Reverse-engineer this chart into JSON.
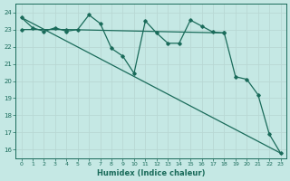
{
  "xlabel": "Humidex (Indice chaleur)",
  "bg_color": "#c5e8e4",
  "grid_major_color": "#b8d8d4",
  "grid_minor_color": "#cde8e4",
  "line_color": "#1a6b5a",
  "xlim": [
    -0.5,
    23.5
  ],
  "ylim": [
    15.5,
    24.5
  ],
  "yticks": [
    16,
    17,
    18,
    19,
    20,
    21,
    22,
    23,
    24
  ],
  "xticks": [
    0,
    1,
    2,
    3,
    4,
    5,
    6,
    7,
    8,
    9,
    10,
    11,
    12,
    13,
    14,
    15,
    16,
    17,
    18,
    19,
    20,
    21,
    22,
    23
  ],
  "line1_x": [
    0,
    1,
    2,
    3,
    4,
    5,
    6,
    7,
    8,
    9,
    10,
    11,
    12,
    13,
    14,
    15,
    16,
    17,
    18,
    19,
    20,
    21,
    22,
    23
  ],
  "line1_y": [
    23.7,
    23.1,
    22.9,
    23.1,
    22.9,
    23.0,
    23.85,
    23.35,
    21.9,
    21.45,
    20.45,
    23.5,
    22.8,
    22.2,
    22.2,
    23.55,
    23.2,
    22.85,
    22.8,
    20.25,
    20.1,
    19.2,
    16.9,
    15.8
  ],
  "line2_x": [
    0,
    23
  ],
  "line2_y": [
    23.7,
    15.8
  ],
  "line3_x": [
    0,
    4,
    18
  ],
  "line3_y": [
    23.0,
    23.0,
    22.8
  ]
}
